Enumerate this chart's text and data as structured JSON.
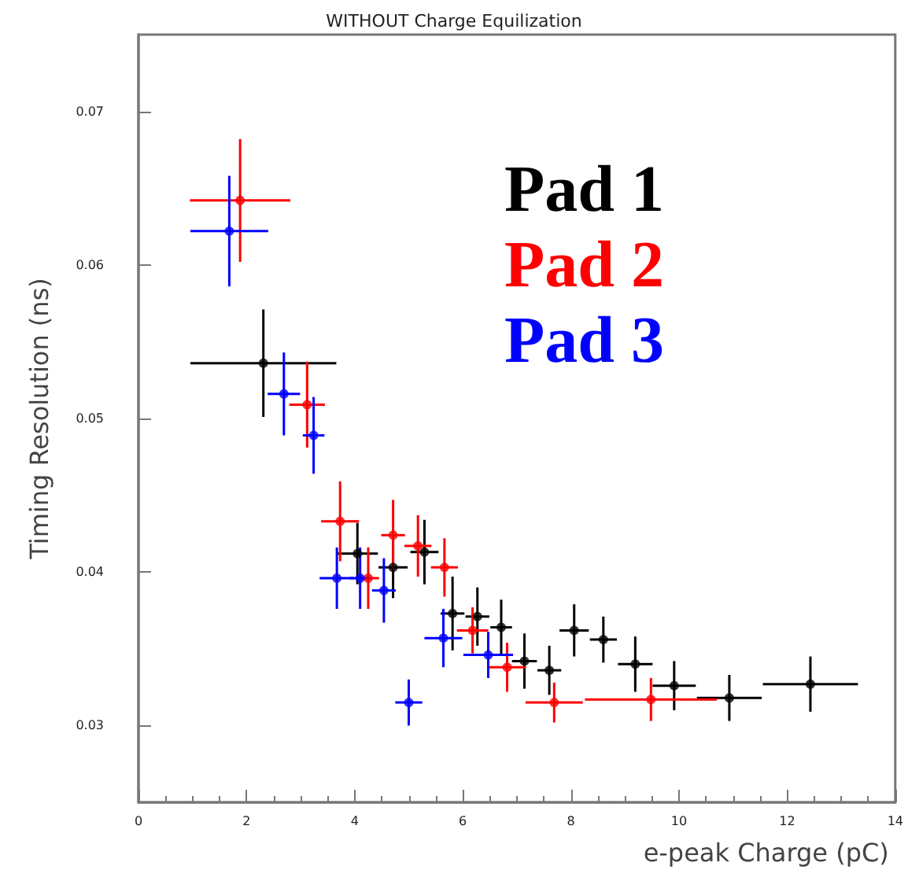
{
  "chart_data": {
    "type": "scatter",
    "title": "WITHOUT Charge Equilization",
    "xlabel": "e-peak Charge (pC)",
    "ylabel": "Timing Resolution (ns)",
    "xlim": [
      0,
      14
    ],
    "xticks": [
      0,
      2,
      4,
      6,
      8,
      10,
      12,
      14
    ],
    "ylim": [
      0.025,
      0.075
    ],
    "yticks": [
      0.03,
      0.04,
      0.05,
      0.06,
      0.07
    ],
    "grid": false,
    "legend": "top right",
    "marker": "circle",
    "series": [
      {
        "name": "Pad 1",
        "color": "#000000",
        "x": [
          2.31,
          4.05,
          4.71,
          5.29,
          5.81,
          6.27,
          6.71,
          7.14,
          7.6,
          8.06,
          8.6,
          9.19,
          9.91,
          10.93,
          12.43
        ],
        "values": [
          0.0536,
          0.0412,
          0.0403,
          0.0413,
          0.0373,
          0.0371,
          0.0364,
          0.0342,
          0.0336,
          0.0362,
          0.0356,
          0.034,
          0.0326,
          0.0318,
          0.0327
        ],
        "errors": [
          0.0035,
          0.002,
          0.002,
          0.0021,
          0.0024,
          0.0019,
          0.0018,
          0.0018,
          0.0016,
          0.0017,
          0.0015,
          0.0018,
          0.0016,
          0.0015,
          0.0018
        ],
        "xerrors": [
          1.35,
          0.38,
          0.27,
          0.26,
          0.22,
          0.22,
          0.2,
          0.23,
          0.22,
          0.27,
          0.25,
          0.32,
          0.4,
          0.6,
          0.88
        ]
      },
      {
        "name": "Pad 2",
        "color": "#ff0000",
        "x": [
          1.88,
          3.12,
          3.73,
          4.25,
          4.71,
          5.17,
          5.66,
          6.18,
          6.82,
          7.69,
          9.48
        ],
        "values": [
          0.0642,
          0.0509,
          0.0433,
          0.0396,
          0.0424,
          0.0417,
          0.0403,
          0.0362,
          0.0338,
          0.0315,
          0.0317
        ],
        "errors": [
          0.004,
          0.0028,
          0.0026,
          0.002,
          0.0023,
          0.002,
          0.0019,
          0.0015,
          0.0016,
          0.0013,
          0.0014
        ],
        "xerrors": [
          0.93,
          0.33,
          0.35,
          0.2,
          0.22,
          0.25,
          0.25,
          0.29,
          0.35,
          0.53,
          1.22
        ]
      },
      {
        "name": "Pad 3",
        "color": "#0000ff",
        "x": [
          1.68,
          2.69,
          3.24,
          3.67,
          4.1,
          4.54,
          5.0,
          5.64,
          6.47
        ],
        "values": [
          0.0622,
          0.0516,
          0.0489,
          0.0396,
          0.0396,
          0.0388,
          0.0315,
          0.0357,
          0.0346
        ],
        "errors": [
          0.0036,
          0.0027,
          0.0025,
          0.002,
          0.002,
          0.0021,
          0.0015,
          0.0019,
          0.0015
        ],
        "xerrors": [
          0.72,
          0.3,
          0.2,
          0.32,
          0.2,
          0.22,
          0.25,
          0.35,
          0.46
        ]
      }
    ]
  }
}
